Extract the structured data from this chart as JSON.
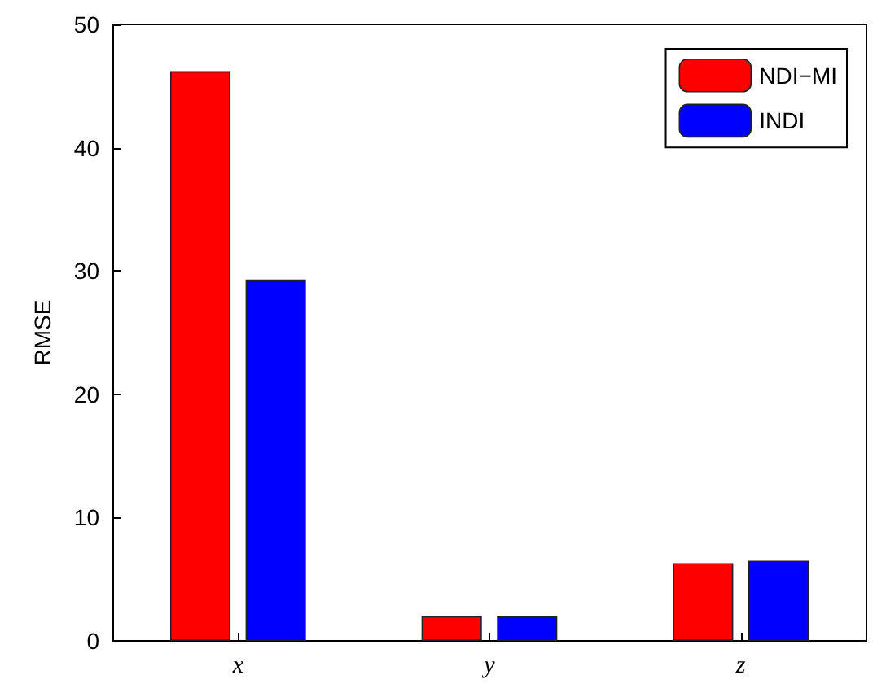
{
  "chart_data": {
    "type": "bar",
    "ylabel": "RMSE",
    "categories": [
      "x",
      "y",
      "z"
    ],
    "series": [
      {
        "name": "NDI−MI",
        "color": "#ff0000",
        "values": [
          46.2,
          2.0,
          6.3
        ]
      },
      {
        "name": "INDI",
        "color": "#0000ff",
        "values": [
          29.3,
          2.0,
          6.5
        ]
      }
    ],
    "ylim": [
      0,
      50
    ],
    "yticks": [
      0,
      10,
      20,
      30,
      40,
      50
    ],
    "grid": false,
    "legend": "top right"
  }
}
